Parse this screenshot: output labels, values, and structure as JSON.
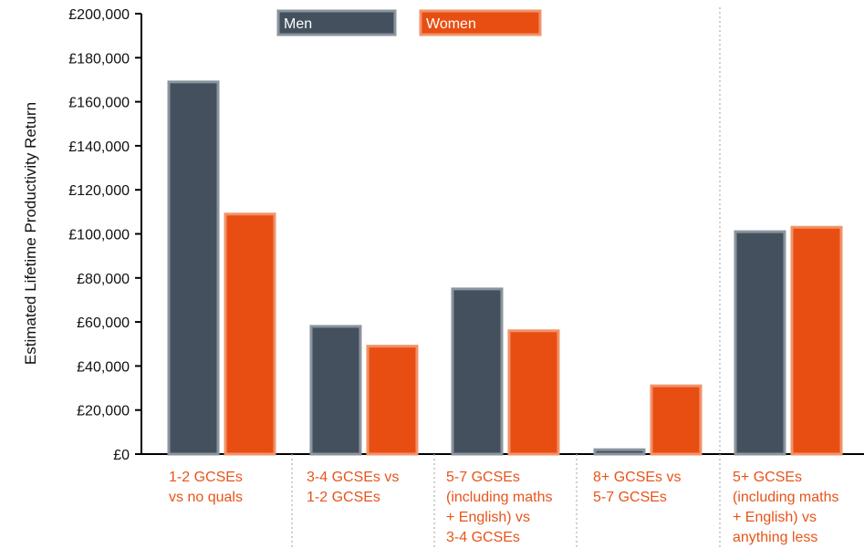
{
  "chart_data": {
    "type": "bar",
    "title": "",
    "xlabel": "",
    "ylabel": "Estimated Lifetime Productivity Return",
    "ylim": [
      0,
      200000
    ],
    "y_ticks": [
      0,
      20000,
      40000,
      60000,
      80000,
      100000,
      120000,
      140000,
      160000,
      180000,
      200000
    ],
    "y_tick_labels": [
      "£0",
      "£20,000",
      "£40,000",
      "£60,000",
      "£80,000",
      "£100,000",
      "£120,000",
      "£140,000",
      "£160,000",
      "£180,000",
      "£200,000"
    ],
    "categories": [
      [
        "1-2 GCSEs",
        "vs no quals"
      ],
      [
        "3-4 GCSEs vs",
        "1-2 GCSEs"
      ],
      [
        "5-7 GCSEs",
        "(including maths",
        "+ English) vs",
        "3-4 GCSEs"
      ],
      [
        "8+ GCSEs vs",
        "5-7 GCSEs"
      ],
      [
        "5+ GCSEs",
        "(including maths",
        "+ English) vs",
        "anything less"
      ]
    ],
    "series": [
      {
        "name": "Men",
        "color": "#44505e",
        "edge": "#8a949e",
        "values": [
          169000,
          58000,
          75000,
          2000,
          101000
        ]
      },
      {
        "name": "Women",
        "color": "#e84e12",
        "edge": "#f0936a",
        "values": [
          109000,
          49000,
          56000,
          31000,
          103000
        ]
      }
    ],
    "category_label_color": "#e8541a",
    "legend_position": "top-center",
    "grid": false
  }
}
